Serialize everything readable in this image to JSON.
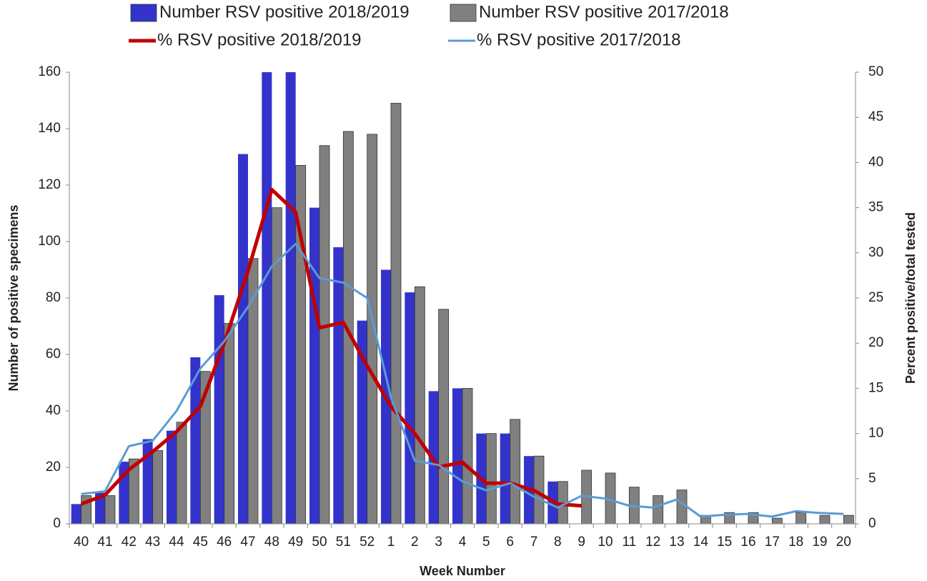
{
  "chart_data": {
    "type": "bar",
    "xlabel": "Week Number",
    "ylabel": "Number of positive specimens",
    "y2label": "Percent positive/total tested",
    "categories": [
      "40",
      "41",
      "42",
      "43",
      "44",
      "45",
      "46",
      "47",
      "48",
      "49",
      "50",
      "51",
      "52",
      "1",
      "2",
      "3",
      "4",
      "5",
      "6",
      "7",
      "8",
      "9",
      "10",
      "11",
      "12",
      "13",
      "14",
      "15",
      "16",
      "17",
      "18",
      "19",
      "20"
    ],
    "ylim": [
      0,
      160
    ],
    "yticks": [
      0,
      20,
      40,
      60,
      80,
      100,
      120,
      140,
      160
    ],
    "y2lim": [
      0,
      50
    ],
    "y2ticks": [
      0,
      5,
      10,
      15,
      20,
      25,
      30,
      35,
      40,
      45,
      50
    ],
    "series": [
      {
        "name": "Number RSV positive 2018/2019",
        "type": "bar",
        "color": "#3333cc",
        "values": [
          7,
          11,
          22,
          30,
          33,
          59,
          81,
          131,
          160,
          160,
          112,
          98,
          72,
          90,
          82,
          47,
          48,
          32,
          32,
          24,
          15,
          null,
          null,
          null,
          null,
          null,
          null,
          null,
          null,
          null,
          null,
          null,
          null
        ]
      },
      {
        "name": "Number RSV positive 2017/2018",
        "type": "bar",
        "color": "#808080",
        "values": [
          10,
          10,
          23,
          26,
          36,
          54,
          71,
          94,
          112,
          127,
          134,
          139,
          138,
          149,
          84,
          76,
          48,
          32,
          37,
          24,
          15,
          19,
          18,
          13,
          10,
          12,
          3,
          4,
          4,
          2,
          4,
          3,
          3
        ]
      },
      {
        "name": "% RSV positive 2018/2019",
        "type": "line",
        "axis": "y2",
        "color": "#c00000",
        "values": [
          2.2,
          3.2,
          6,
          8,
          10.2,
          13,
          20,
          28,
          37,
          34.5,
          21.7,
          22.3,
          17.5,
          13,
          10,
          6.3,
          6.8,
          4.5,
          4.5,
          3.7,
          2.2,
          2,
          null,
          null,
          null,
          null,
          null,
          null,
          null,
          null,
          null,
          null,
          null
        ]
      },
      {
        "name": "% RSV positive 2017/2018",
        "type": "line",
        "axis": "y2",
        "color": "#5b9bd5",
        "values": [
          3.3,
          3.6,
          8.6,
          9.2,
          12.5,
          17.2,
          20.2,
          24,
          28.5,
          31,
          27.2,
          26.7,
          25,
          14,
          7,
          6.5,
          4.7,
          3.7,
          4.5,
          3,
          1.8,
          3.1,
          2.8,
          2,
          1.8,
          2.7,
          0.8,
          1,
          1.1,
          0.8,
          1.4,
          1.2,
          1.1
        ]
      }
    ]
  }
}
